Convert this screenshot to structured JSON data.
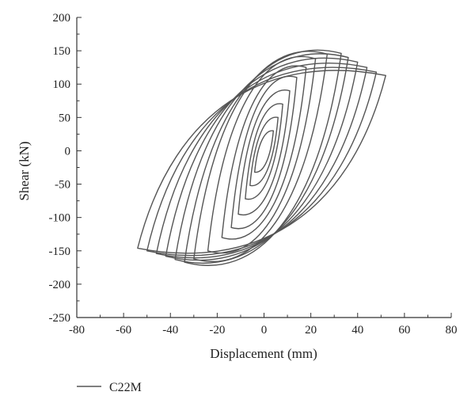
{
  "chart_data": {
    "type": "line",
    "title": "",
    "xlabel": "Displacement (mm)",
    "ylabel": "Shear (kN)",
    "xlim": [
      -80,
      80
    ],
    "ylim": [
      -250,
      200
    ],
    "xticks": [
      -80,
      -60,
      -40,
      -20,
      0,
      20,
      40,
      60,
      80
    ],
    "yticks": [
      -250,
      -200,
      -150,
      -100,
      -50,
      0,
      50,
      100,
      150,
      200
    ],
    "grid": false,
    "legend_position": "bottom-left",
    "line_color": "#555555",
    "series": [
      {
        "name": "C22M",
        "description_of_shape": "hysteresis loops",
        "loops": [
          {
            "peak_pos": [
              4,
              30
            ],
            "peak_neg": [
              -4,
              -32
            ]
          },
          {
            "peak_pos": [
              6,
              50
            ],
            "peak_neg": [
              -6,
              -52
            ]
          },
          {
            "peak_pos": [
              8,
              70
            ],
            "peak_neg": [
              -8,
              -72
            ]
          },
          {
            "peak_pos": [
              11,
              90
            ],
            "peak_neg": [
              -11,
              -95
            ]
          },
          {
            "peak_pos": [
              14,
              110
            ],
            "peak_neg": [
              -14,
              -115
            ]
          },
          {
            "peak_pos": [
              18,
              125
            ],
            "peak_neg": [
              -18,
              -130
            ]
          },
          {
            "peak_pos": [
              22,
              138
            ],
            "peak_neg": [
              -24,
              -150
            ]
          },
          {
            "peak_pos": [
              27,
              145
            ],
            "peak_neg": [
              -30,
              -162
            ]
          },
          {
            "peak_pos": [
              33,
              146
            ],
            "peak_neg": [
              -34,
              -167
            ]
          },
          {
            "peak_pos": [
              36,
              140
            ],
            "peak_neg": [
              -38,
              -163
            ]
          },
          {
            "peak_pos": [
              40,
              133
            ],
            "peak_neg": [
              -42,
              -158
            ]
          },
          {
            "peak_pos": [
              44,
              125
            ],
            "peak_neg": [
              -46,
              -154
            ]
          },
          {
            "peak_pos": [
              48,
              118
            ],
            "peak_neg": [
              -50,
              -150
            ]
          },
          {
            "peak_pos": [
              52,
              113
            ],
            "peak_neg": [
              -54,
              -146
            ]
          }
        ]
      }
    ]
  }
}
